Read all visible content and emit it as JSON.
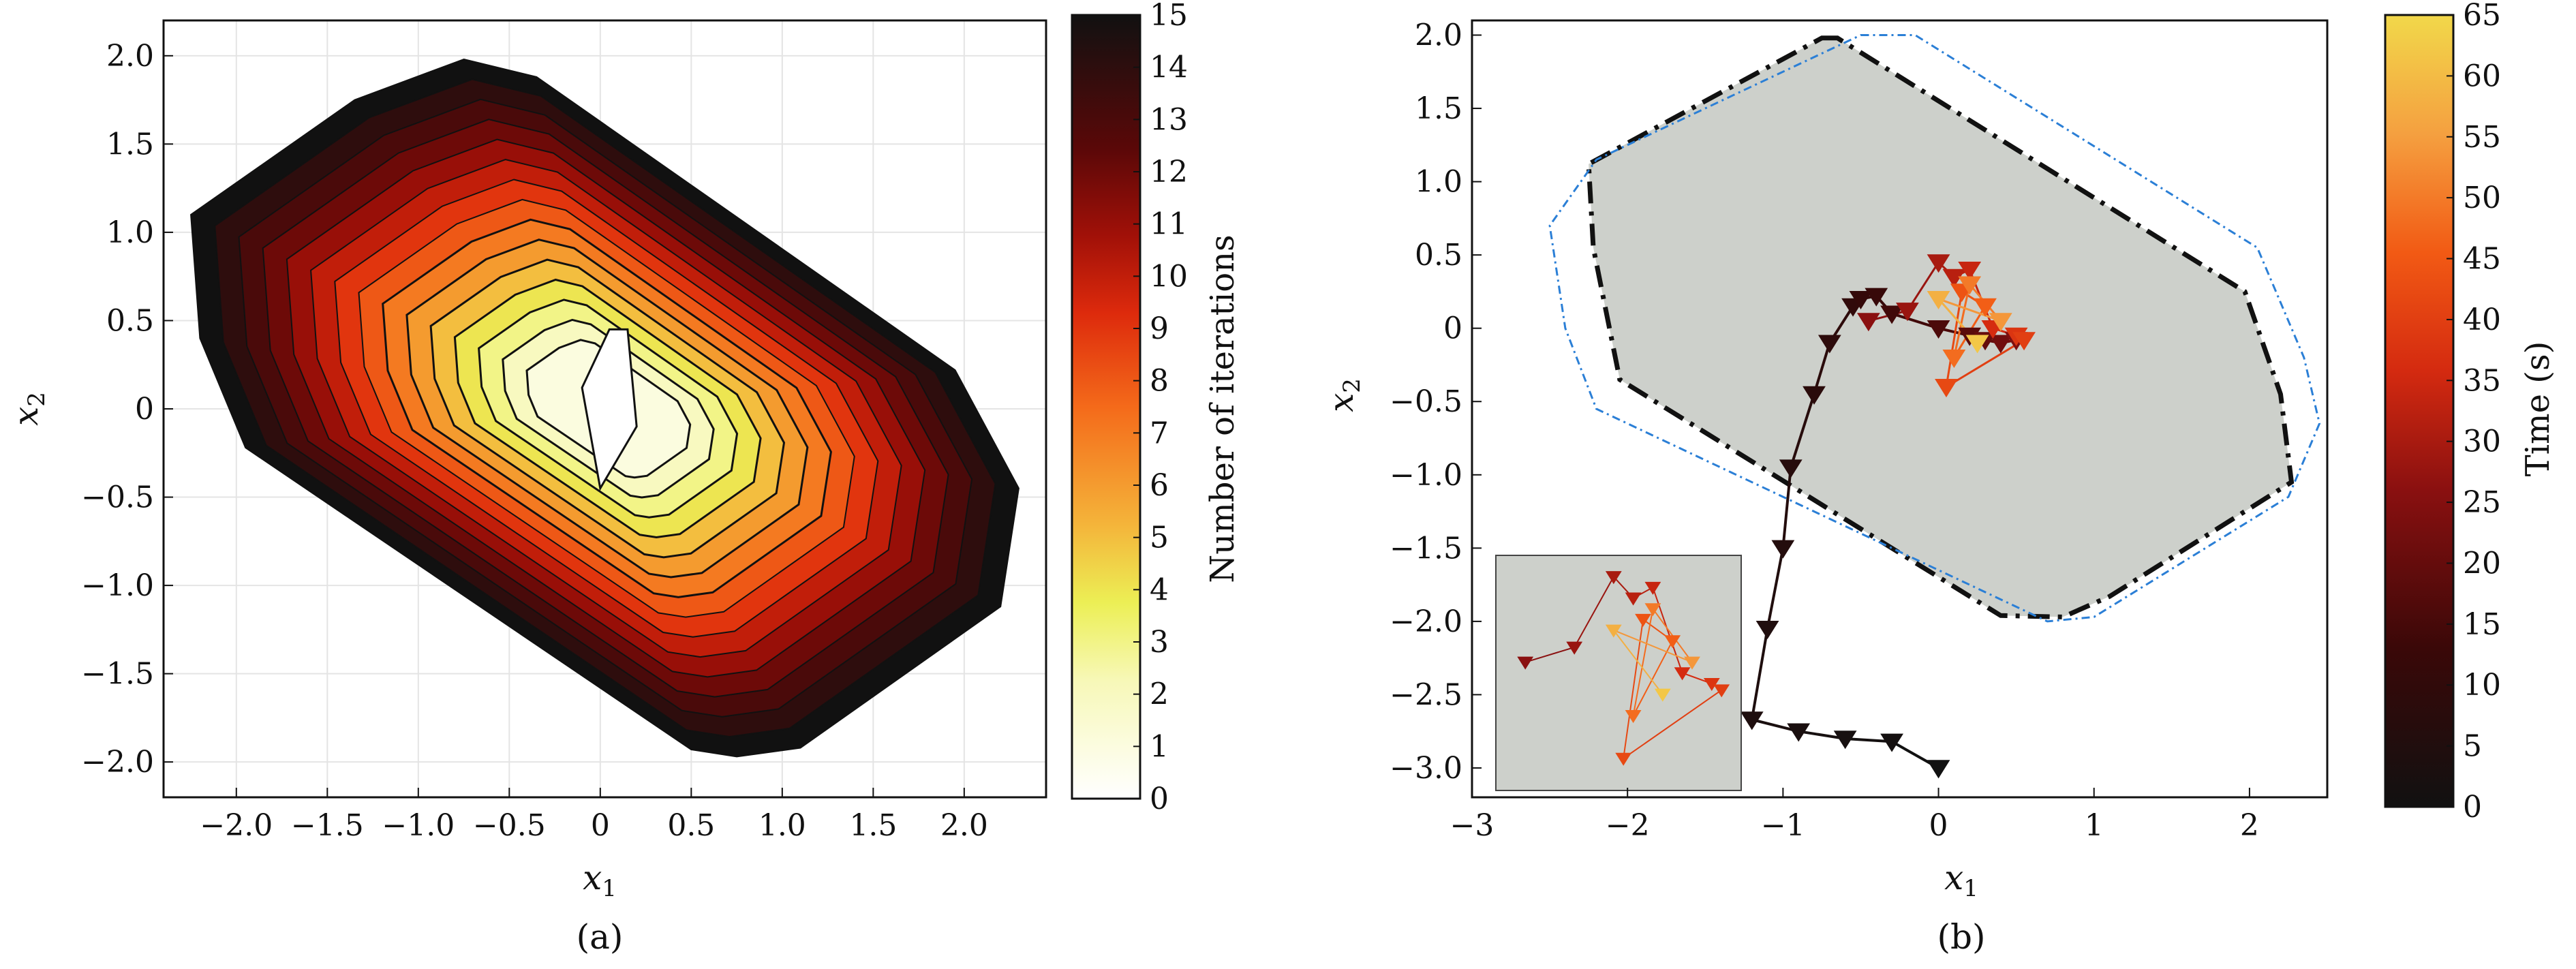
{
  "chart_data": [
    {
      "panel": "a",
      "caption": "(a)",
      "type": "contour",
      "xlabel": "x",
      "xlabel_sub": "1",
      "ylabel": "x",
      "ylabel_sub": "2",
      "xlim": [
        -2.4,
        2.45
      ],
      "ylim": [
        -2.2,
        2.2
      ],
      "xticks": [
        -2.0,
        -1.5,
        -1.0,
        -0.5,
        0,
        0.5,
        1.0,
        1.5,
        2.0
      ],
      "xtick_labels": [
        "−2.0",
        "−1.5",
        "−1.0",
        "−0.5",
        "0",
        "0.5",
        "1.0",
        "1.5",
        "2.0"
      ],
      "yticks": [
        2.0,
        1.5,
        1.0,
        0.5,
        0,
        -0.5,
        -1.0,
        -1.5,
        -2.0
      ],
      "ytick_labels": [
        "2.0",
        "1.5",
        "1.0",
        "0.5",
        "0",
        "−0.5",
        "−1.0",
        "−1.5",
        "−2.0"
      ],
      "grid": true,
      "colorbar": {
        "label": "Number of iterations",
        "min": 0,
        "max": 15,
        "ticks": [
          0,
          1,
          2,
          3,
          4,
          5,
          6,
          7,
          8,
          9,
          10,
          11,
          12,
          13,
          14,
          15
        ],
        "tick_labels": [
          "0",
          "1",
          "2",
          "3",
          "4",
          "5",
          "6",
          "7",
          "8",
          "9",
          "10",
          "11",
          "12",
          "13",
          "14",
          "15"
        ]
      },
      "colormap": [
        [
          0,
          "#ffffff"
        ],
        [
          0.15,
          "#f7f8b8"
        ],
        [
          0.25,
          "#ecef55"
        ],
        [
          0.35,
          "#f4b43a"
        ],
        [
          0.5,
          "#f46a1a"
        ],
        [
          0.62,
          "#dd2a0c"
        ],
        [
          0.72,
          "#a01008"
        ],
        [
          0.83,
          "#5a0808"
        ],
        [
          1,
          "#111111"
        ]
      ],
      "outer_boundary": [
        [
          -0.75,
          1.98
        ],
        [
          -0.35,
          1.88
        ],
        [
          1.95,
          0.22
        ],
        [
          2.3,
          -0.45
        ],
        [
          2.2,
          -1.12
        ],
        [
          1.1,
          -1.92
        ],
        [
          0.75,
          -1.97
        ],
        [
          0.5,
          -1.93
        ],
        [
          -1.95,
          -0.22
        ],
        [
          -2.2,
          0.4
        ],
        [
          -2.25,
          1.1
        ],
        [
          -1.35,
          1.75
        ]
      ],
      "inner_region": [
        [
          -0.1,
          0.12
        ],
        [
          0.05,
          0.45
        ],
        [
          0.15,
          0.45
        ],
        [
          0.2,
          -0.1
        ],
        [
          0.0,
          -0.45
        ]
      ],
      "contour_levels": 15
    },
    {
      "panel": "b",
      "caption": "(b)",
      "type": "trajectory",
      "xlabel": "x",
      "xlabel_sub": "1",
      "ylabel": "x",
      "ylabel_sub": "2",
      "xlim": [
        -3,
        2.5
      ],
      "ylim": [
        -3.2,
        2.1
      ],
      "xticks": [
        -3,
        -2,
        -1,
        0,
        1,
        2
      ],
      "xtick_labels": [
        "−3",
        "−2",
        "−1",
        "0",
        "1",
        "2"
      ],
      "yticks": [
        2.0,
        1.5,
        1.0,
        0.5,
        0,
        -0.5,
        -1.0,
        -1.5,
        -2.0,
        -2.5,
        -3.0
      ],
      "ytick_labels": [
        "2.0",
        "1.5",
        "1.0",
        "0.5",
        "0",
        "−0.5",
        "−1.0",
        "−1.5",
        "−2.0",
        "−2.5",
        "−3.0"
      ],
      "colorbar": {
        "label": "Time (s)",
        "min": 0,
        "max": 65,
        "ticks": [
          0,
          5,
          10,
          15,
          20,
          25,
          30,
          35,
          40,
          45,
          50,
          55,
          60,
          65
        ],
        "tick_labels": [
          "0",
          "5",
          "10",
          "15",
          "20",
          "25",
          "30",
          "35",
          "40",
          "45",
          "50",
          "55",
          "60",
          "65"
        ]
      },
      "colormap": [
        [
          0,
          "#111111"
        ],
        [
          0.2,
          "#3a0808"
        ],
        [
          0.4,
          "#8a1010"
        ],
        [
          0.55,
          "#d42a10"
        ],
        [
          0.7,
          "#f25a14"
        ],
        [
          0.85,
          "#f4a040"
        ],
        [
          1,
          "#f2d84a"
        ]
      ],
      "safe_set": [
        [
          -0.75,
          1.98
        ],
        [
          -0.65,
          1.98
        ],
        [
          1.97,
          0.25
        ],
        [
          2.2,
          -0.45
        ],
        [
          2.27,
          -1.05
        ],
        [
          1.1,
          -1.83
        ],
        [
          0.8,
          -1.97
        ],
        [
          0.4,
          -1.96
        ],
        [
          -2.05,
          -0.35
        ],
        [
          -2.22,
          0.55
        ],
        [
          -2.25,
          1.12
        ]
      ],
      "outer_dashed_set": [
        [
          -0.5,
          2.0
        ],
        [
          -0.15,
          2.0
        ],
        [
          2.05,
          0.55
        ],
        [
          2.35,
          -0.2
        ],
        [
          2.45,
          -0.65
        ],
        [
          2.25,
          -1.15
        ],
        [
          1.0,
          -1.97
        ],
        [
          0.7,
          -2.0
        ],
        [
          -2.2,
          -0.55
        ],
        [
          -2.4,
          0.0
        ],
        [
          -2.5,
          0.7
        ],
        [
          -2.2,
          1.15
        ]
      ],
      "colors": {
        "safe_fill": "#cdd0cb",
        "safe_edge": "#111111",
        "outer_edge": "#2b7fd6"
      },
      "trajectory": {
        "x": [
          0,
          -0.3,
          -0.6,
          -0.9,
          -1.2,
          -1.1,
          -1.0,
          -0.95,
          -0.8,
          -0.7,
          -0.55,
          -0.5,
          -0.4,
          -0.3,
          0.0,
          0.2,
          0.3,
          0.4,
          0.5
        ],
        "y": [
          -3.0,
          -2.82,
          -2.8,
          -2.75,
          -2.67,
          -2.05,
          -1.5,
          -0.95,
          -0.45,
          -0.1,
          0.15,
          0.2,
          0.22,
          0.1,
          0.0,
          -0.05,
          -0.08,
          -0.1,
          -0.08
        ],
        "t": [
          0,
          1,
          2,
          3,
          4,
          5,
          6,
          7,
          8,
          9,
          10,
          11,
          12,
          14,
          16,
          18,
          20,
          22,
          24
        ]
      },
      "cluster": {
        "x": [
          -0.45,
          -0.2,
          0.0,
          0.1,
          0.2,
          0.35,
          0.5,
          0.55,
          0.05,
          0.15,
          0.3,
          0.1,
          0.2,
          0.4,
          0.0,
          0.25
        ],
        "y": [
          0.05,
          0.12,
          0.45,
          0.35,
          0.4,
          0.0,
          -0.05,
          -0.08,
          -0.4,
          0.25,
          0.15,
          -0.2,
          0.3,
          0.05,
          0.2,
          -0.1
        ],
        "t": [
          26,
          28,
          30,
          32,
          34,
          36,
          38,
          40,
          42,
          44,
          46,
          48,
          50,
          54,
          58,
          62
        ]
      },
      "inset": {
        "present": true,
        "colors": {
          "fill": "#cdd0cb"
        }
      }
    }
  ]
}
